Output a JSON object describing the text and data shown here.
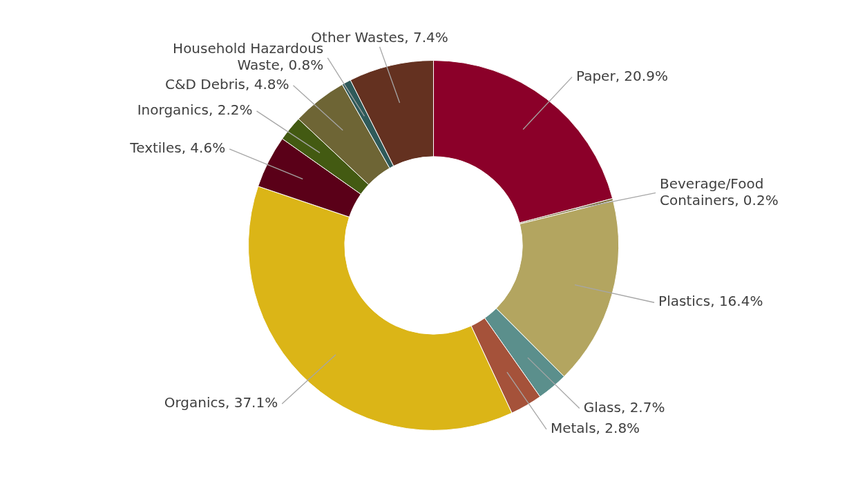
{
  "chart_data": {
    "type": "donut",
    "categories": [
      "Paper",
      "Beverage/Food Containers",
      "Plastics",
      "Glass",
      "Metals",
      "Organics",
      "Textiles",
      "Inorganics",
      "C&D Debris",
      "Household Hazardous Waste",
      "Other Wastes"
    ],
    "values": [
      20.9,
      0.2,
      16.4,
      2.7,
      2.8,
      37.1,
      4.6,
      2.2,
      4.8,
      0.8,
      7.4
    ],
    "value_labels": [
      "20.9%",
      "0.2%",
      "16.4%",
      "2.7%",
      "2.8%",
      "37.1%",
      "4.6%",
      "2.2%",
      "4.8%",
      "0.8%",
      "7.4%"
    ],
    "colors": [
      "#8b0029",
      "#7d6f3c",
      "#b3a560",
      "#5b8f8c",
      "#a5523a",
      "#dbb517",
      "#5a0018",
      "#435a12",
      "#6e6535",
      "#2f5a5a",
      "#643120"
    ],
    "legend": false
  }
}
